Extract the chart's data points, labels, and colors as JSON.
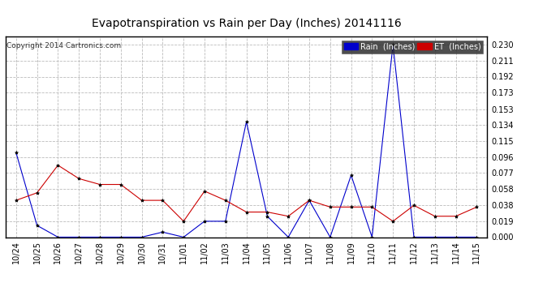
{
  "title": "Evapotranspiration vs Rain per Day (Inches) 20141116",
  "copyright": "Copyright 2014 Cartronics.com",
  "legend_rain": "Rain  (Inches)",
  "x_labels": [
    "10/24",
    "10/25",
    "10/26",
    "10/27",
    "10/28",
    "10/29",
    "10/30",
    "10/31",
    "11/01",
    "11/02",
    "11/03",
    "11/04",
    "11/05",
    "11/06",
    "11/07",
    "11/08",
    "11/09",
    "11/10",
    "11/11",
    "11/12",
    "11/13",
    "11/14",
    "11/15"
  ],
  "rain_values": [
    0.101,
    0.014,
    0.0,
    0.0,
    0.0,
    0.0,
    0.0,
    0.006,
    0.0,
    0.019,
    0.019,
    0.138,
    0.025,
    0.0,
    0.044,
    0.0,
    0.074,
    0.0,
    0.23,
    0.0,
    0.0,
    0.0,
    0.0
  ],
  "et_values": [
    0.044,
    0.053,
    0.086,
    0.07,
    0.063,
    0.063,
    0.044,
    0.044,
    0.019,
    0.055,
    0.044,
    0.03,
    0.03,
    0.025,
    0.044,
    0.036,
    0.036,
    0.036,
    0.019,
    0.038,
    0.025,
    0.025,
    0.036
  ],
  "ylim": [
    0.0,
    0.24
  ],
  "yticks": [
    0.0,
    0.019,
    0.038,
    0.058,
    0.077,
    0.096,
    0.115,
    0.134,
    0.153,
    0.173,
    0.192,
    0.211,
    0.23
  ],
  "rain_color": "#0000cc",
  "et_color": "#cc0000",
  "background_color": "#ffffff",
  "grid_color": "#bbbbbb",
  "title_fontsize": 10,
  "tick_fontsize": 7,
  "copyright_fontsize": 6.5,
  "legend_fontsize": 7,
  "marker": "*",
  "marker_size": 3
}
